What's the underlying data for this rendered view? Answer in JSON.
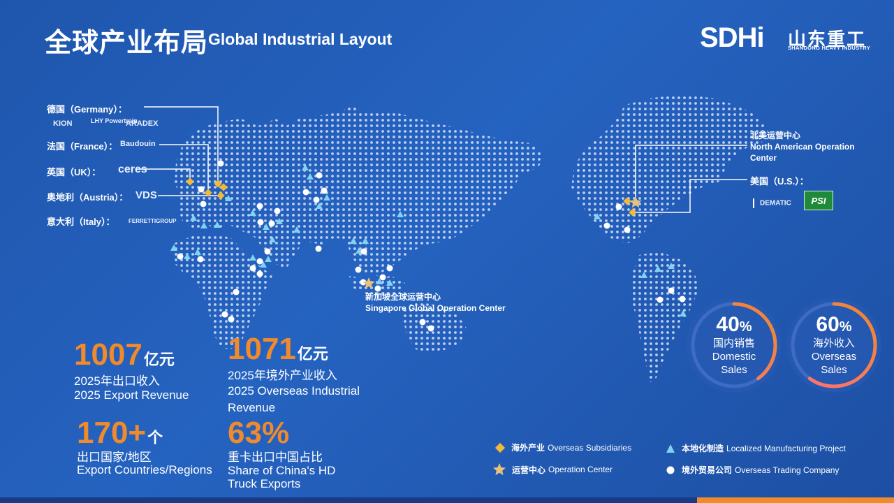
{
  "header": {
    "title_cn": "全球产业布局",
    "title_en": "Global Industrial Layout"
  },
  "logo": {
    "mark": "SDHi",
    "name_cn": "山东重工",
    "name_en": "SHANDONG HEAVY INDUSTRY"
  },
  "countries": [
    {
      "label": "德国（Germany）：",
      "brands": [
        "KION",
        "LHY Powertrain",
        "ARADEX"
      ]
    },
    {
      "label": "法国（France）：",
      "brands": [
        "Baudouin"
      ]
    },
    {
      "label": "英国（UK）：",
      "brands": [
        "ceres"
      ]
    },
    {
      "label": "奥地利（Austria）：",
      "brands": [
        "VDS"
      ]
    },
    {
      "label": "意大利（Italy）：",
      "brands": [
        "FERRETTIGROUP"
      ]
    }
  ],
  "us": {
    "label": "美国（U.S.）：",
    "brands": [
      "DEMATIC",
      "PSI"
    ]
  },
  "operation_centers": {
    "north_america": {
      "cn": "北美运营中心",
      "en_line1": "North American Operation",
      "en_line2": "Center"
    },
    "singapore": {
      "cn": "新加坡全球运营中心",
      "en": "Singapore Global Operation Center"
    }
  },
  "stats": [
    {
      "value": "1007",
      "unit": "亿元",
      "desc_cn": "2025年出口收入",
      "desc_en": "2025 Export Revenue"
    },
    {
      "value": "1071",
      "unit": "亿元",
      "desc_cn": "2025年境外产业收入",
      "desc_en": "2025 Overseas Industrial Revenue"
    },
    {
      "value": "170+",
      "unit": "个",
      "desc_cn": "出口国家/地区",
      "desc_en": "Export Countries/Regions"
    },
    {
      "value": "63%",
      "unit": "",
      "desc_cn": "重卡出口中国占比",
      "desc_en": "Share of China's HD Truck Exports"
    }
  ],
  "rings": [
    {
      "num": "40",
      "pct": "%",
      "label_cn": "国内销售",
      "label_en_1": "Domestic",
      "label_en_2": "Sales",
      "fraction": 0.4
    },
    {
      "num": "60",
      "pct": "%",
      "label_cn": "海外收入",
      "label_en_1": "Overseas",
      "label_en_2": "Sales",
      "fraction": 0.6
    }
  ],
  "legend": [
    {
      "cn": "海外产业",
      "en": "Overseas Subsidiaries",
      "icon": "diamond-icon"
    },
    {
      "cn": "本地化制造",
      "en": "Localized Manufacturing Project",
      "icon": "triangle-icon"
    },
    {
      "cn": "运营中心",
      "en": "Operation Center",
      "icon": "star-icon"
    },
    {
      "cn": "境外贸易公司",
      "en": "Overseas Trading Company",
      "icon": "circle-icon"
    }
  ],
  "colors": {
    "accent_orange": "#f08a2c",
    "diamond": "#f0b93a",
    "star": "#e6c27a",
    "triangle": "#7fd3f2",
    "background": "#2159b3"
  }
}
